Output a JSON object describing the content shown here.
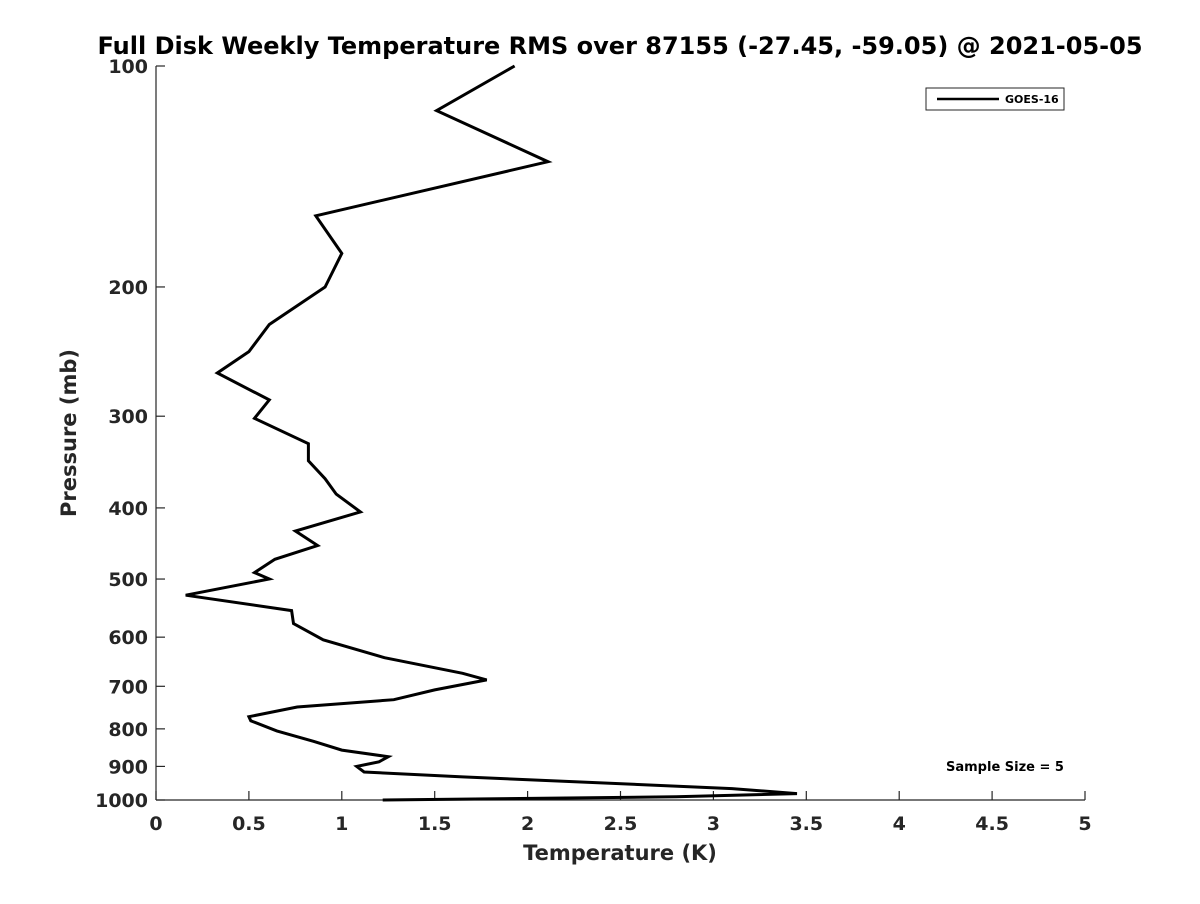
{
  "chart_data": {
    "type": "line",
    "title": "Full Disk Weekly Temperature RMS over 87155 (-27.45, -59.05) @ 2021-05-05",
    "xlabel": "Temperature (K)",
    "ylabel": "Pressure (mb)",
    "xlim": [
      0,
      5
    ],
    "ylim": [
      100,
      1000
    ],
    "y_scale": "log",
    "y_reversed": true,
    "grid": false,
    "legend_position": "top-right",
    "x_ticks": [
      0,
      0.5,
      1,
      1.5,
      2,
      2.5,
      3,
      3.5,
      4,
      4.5,
      5
    ],
    "x_tick_labels": [
      "0",
      "0.5",
      "1",
      "1.5",
      "2",
      "2.5",
      "3",
      "3.5",
      "4",
      "4.5",
      "5"
    ],
    "y_ticks": [
      100,
      200,
      300,
      400,
      500,
      600,
      700,
      800,
      900,
      1000
    ],
    "y_tick_labels": [
      "100",
      "200",
      "300",
      "400",
      "500",
      "600",
      "700",
      "800",
      "900",
      "1000"
    ],
    "annotation": "Sample Size = 5",
    "series": [
      {
        "name": "GOES-16",
        "color": "#000000",
        "x": [
          1.93,
          1.51,
          2.11,
          0.86,
          1.0,
          0.91,
          0.61,
          0.5,
          0.33,
          0.61,
          0.53,
          0.82,
          0.82,
          0.91,
          0.97,
          1.1,
          0.75,
          0.87,
          0.64,
          0.53,
          0.61,
          0.16,
          0.73,
          0.74,
          0.9,
          1.23,
          1.65,
          1.78,
          1.5,
          1.28,
          0.76,
          0.5,
          0.51,
          0.65,
          0.85,
          1.0,
          1.25,
          1.2,
          1.08,
          1.12,
          1.65,
          3.1,
          3.45,
          2.8,
          1.22
        ],
        "y": [
          100,
          115,
          135,
          160,
          180,
          200,
          225,
          245,
          262,
          285,
          302,
          327,
          345,
          365,
          383,
          405,
          430,
          450,
          470,
          490,
          500,
          526,
          552,
          575,
          605,
          640,
          672,
          686,
          708,
          730,
          747,
          770,
          780,
          805,
          832,
          855,
          873,
          887,
          900,
          916,
          930,
          965,
          980,
          990,
          1000
        ]
      }
    ]
  }
}
